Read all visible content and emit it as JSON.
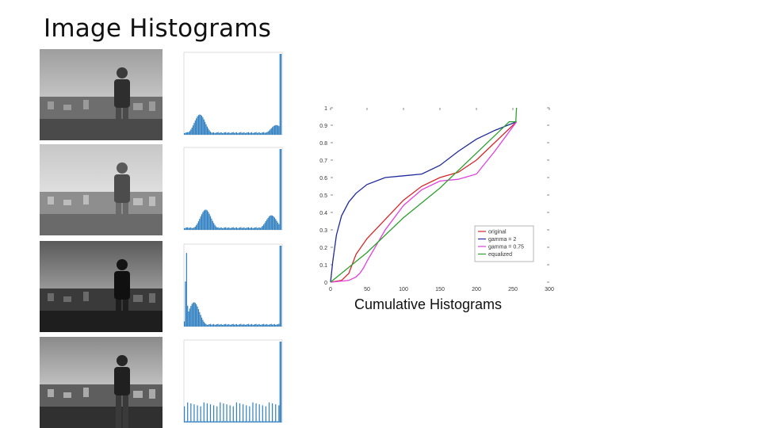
{
  "slide": {
    "title": "Image Histograms"
  },
  "cumulative": {
    "caption": "Cumulative Histograms"
  },
  "histogram_rows": [
    {
      "kind": "original",
      "photo_tone": "normal",
      "peaks": [
        [
          0.16,
          0.25
        ],
        [
          0.95,
          0.12
        ],
        [
          1.0,
          1.0
        ]
      ]
    },
    {
      "kind": "gamma-2",
      "photo_tone": "bright",
      "peaks": [
        [
          0.22,
          0.25
        ],
        [
          0.9,
          0.18
        ],
        [
          1.0,
          1.0
        ]
      ]
    },
    {
      "kind": "gamma-0.75",
      "photo_tone": "dark",
      "peaks": [
        [
          0.02,
          0.95
        ],
        [
          0.1,
          0.3
        ],
        [
          1.0,
          1.0
        ]
      ]
    },
    {
      "kind": "equalized",
      "photo_tone": "normal",
      "peaks": [
        [
          0.5,
          0.25
        ],
        [
          1.0,
          1.0
        ]
      ]
    }
  ],
  "chart_data": {
    "type": "line",
    "title": "Cumulative Histograms",
    "xlim": [
      0,
      300
    ],
    "ylim": [
      0,
      1
    ],
    "x_ticks": [
      "0",
      "50",
      "100",
      "150",
      "200",
      "250",
      "300"
    ],
    "y_ticks": [
      "0",
      "0.1",
      "0.2",
      "0.3",
      "0.4",
      "0.5",
      "0.6",
      "0.7",
      "0.8",
      "0.9",
      "1"
    ],
    "legend_position": "bottom-right",
    "series": [
      {
        "name": "original",
        "color": "#d62728",
        "x": [
          0,
          15,
          25,
          35,
          50,
          75,
          100,
          125,
          150,
          175,
          200,
          225,
          255
        ],
        "y": [
          0,
          0.01,
          0.05,
          0.16,
          0.25,
          0.36,
          0.47,
          0.55,
          0.6,
          0.63,
          0.7,
          0.8,
          0.92
        ]
      },
      {
        "name": "gamma = 2",
        "color": "#1f2a9c",
        "x": [
          0,
          3,
          8,
          15,
          25,
          35,
          50,
          75,
          100,
          125,
          150,
          175,
          200,
          225,
          255
        ],
        "y": [
          0,
          0.12,
          0.27,
          0.38,
          0.46,
          0.51,
          0.56,
          0.6,
          0.61,
          0.62,
          0.67,
          0.75,
          0.82,
          0.87,
          0.92
        ]
      },
      {
        "name": "gamma = 0.75",
        "color": "#e040e0",
        "x": [
          0,
          25,
          35,
          40,
          45,
          50,
          75,
          100,
          125,
          150,
          175,
          200,
          225,
          255
        ],
        "y": [
          0,
          0.01,
          0.03,
          0.05,
          0.08,
          0.12,
          0.3,
          0.44,
          0.53,
          0.58,
          0.59,
          0.62,
          0.75,
          0.92
        ]
      },
      {
        "name": "equalized",
        "color": "#2ca02c",
        "x": [
          0,
          50,
          100,
          150,
          200,
          245,
          254,
          255
        ],
        "y": [
          0,
          0.17,
          0.37,
          0.54,
          0.74,
          0.92,
          0.92,
          1.0
        ]
      }
    ]
  }
}
